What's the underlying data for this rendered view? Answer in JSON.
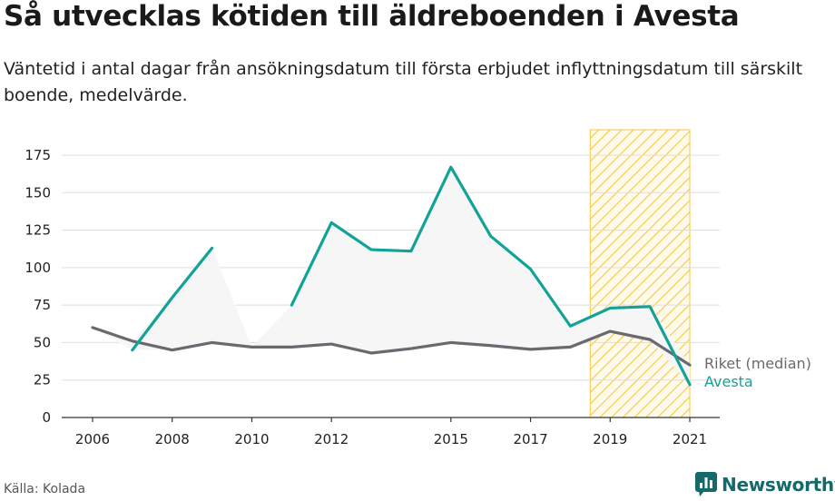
{
  "title": "Så utvecklas kötiden till äldreboenden i Avesta",
  "subtitle": "Väntetid i antal dagar från ansökningsdatum till första erbjudet inflyttningsdatum till särskilt boende, medelvärde.",
  "source": "Källa: Kolada",
  "brand": {
    "name": "Newsworthy",
    "icon": "newsworthy-logo-icon"
  },
  "colors": {
    "avesta": "#11a398",
    "riket": "#6b6870",
    "band": "#f6f6f6",
    "highlight_fill": "#f5c842",
    "grid": "#dddddd",
    "axis": "#333333"
  },
  "chart_data": {
    "type": "line",
    "title": "Så utvecklas kötiden till äldreboenden i Avesta",
    "xlabel": "",
    "ylabel": "",
    "xlim": [
      2005.6,
      2021.4
    ],
    "ylim": [
      0,
      175
    ],
    "yticks": [
      0,
      25,
      50,
      75,
      100,
      125,
      150,
      175
    ],
    "xticks": [
      2006,
      2008,
      2010,
      2012,
      2015,
      2017,
      2019,
      2021
    ],
    "xtick_labels": [
      "2006",
      "2008",
      "2010",
      "2012",
      "2015",
      "2017",
      "2019",
      "2021"
    ],
    "grid": true,
    "highlight": {
      "from": 2018.5,
      "to": 2021.0,
      "pattern": "diagonal-hatch"
    },
    "series": [
      {
        "name": "Riket (median)",
        "color": "#6b6870",
        "points": [
          [
            2006,
            60
          ],
          [
            2007,
            51
          ],
          [
            2008,
            45
          ],
          [
            2009,
            50
          ],
          [
            2010,
            47
          ],
          [
            2011,
            47
          ],
          [
            2012,
            49
          ],
          [
            2013,
            43
          ],
          [
            2014,
            46
          ],
          [
            2015,
            50
          ],
          [
            2016,
            48
          ],
          [
            2017,
            45.5
          ],
          [
            2018,
            47
          ],
          [
            2019,
            57.5
          ],
          [
            2020,
            52
          ],
          [
            2021,
            35
          ]
        ]
      },
      {
        "name": "Avesta",
        "color": "#11a398",
        "points": [
          [
            2007,
            45
          ],
          [
            2008,
            80
          ],
          [
            2009,
            113
          ],
          [
            2010,
            null
          ],
          [
            2011,
            75
          ],
          [
            2012,
            130
          ],
          [
            2013,
            112
          ],
          [
            2014,
            111
          ],
          [
            2015,
            167
          ],
          [
            2016,
            121
          ],
          [
            2017,
            99
          ],
          [
            2018,
            61
          ],
          [
            2019,
            73
          ],
          [
            2020,
            74
          ],
          [
            2021,
            22
          ]
        ]
      }
    ]
  }
}
